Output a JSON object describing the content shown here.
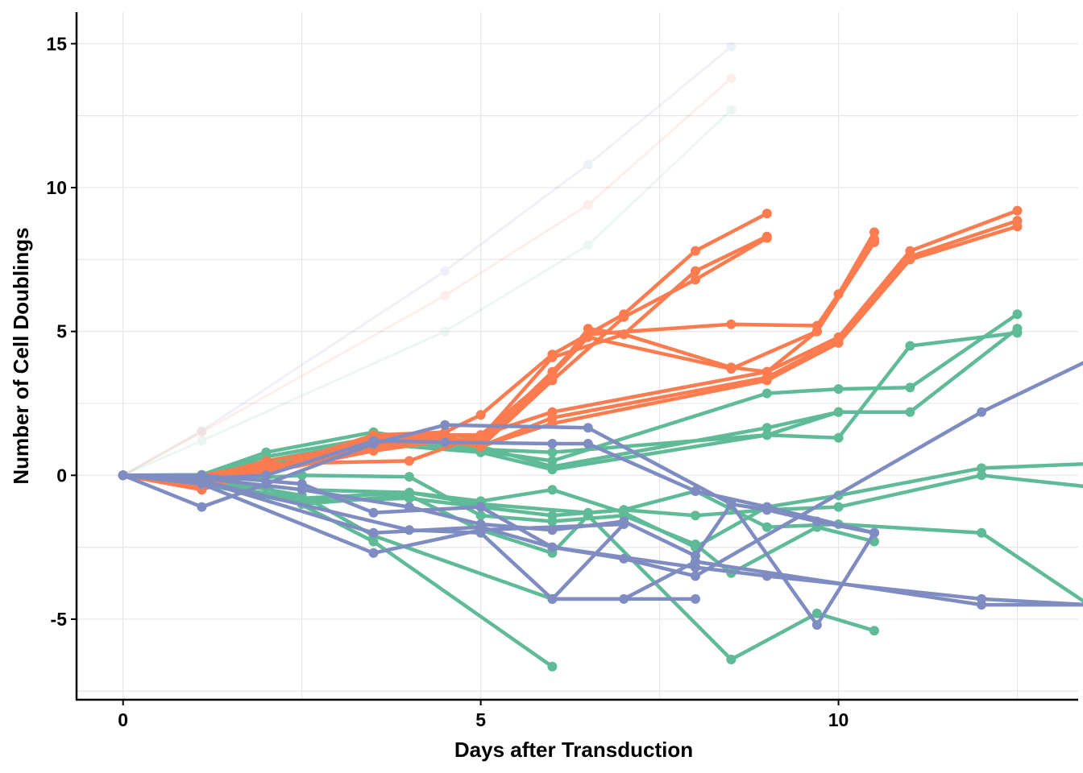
{
  "chart_data": {
    "type": "line",
    "title": "",
    "xlabel": "Days after Transduction",
    "ylabel": "Number of Cell Doublings",
    "xlim": [
      -0.65,
      13.35
    ],
    "ylim": [
      -7.8,
      16.1
    ],
    "x_ticks": [
      0,
      5,
      10
    ],
    "y_ticks": [
      -5,
      0,
      5,
      10,
      15
    ],
    "x_tick_labels": [
      "0",
      "5",
      "10"
    ],
    "y_tick_labels": [
      "-5",
      "0",
      "5",
      "10",
      "15"
    ],
    "grid": true,
    "legend": "none",
    "colors": {
      "green": "#5fbb97",
      "orange": "#fc7b4f",
      "blue": "#7f8cc2"
    },
    "series": [
      {
        "color": "blue",
        "faded": true,
        "points": [
          [
            0,
            0
          ],
          [
            1.1,
            1.55
          ],
          [
            4.5,
            7.1
          ],
          [
            6.5,
            10.8
          ],
          [
            8.5,
            14.9
          ]
        ]
      },
      {
        "color": "orange",
        "faded": true,
        "points": [
          [
            0,
            0
          ],
          [
            1.1,
            1.5
          ],
          [
            4.5,
            6.25
          ],
          [
            6.5,
            9.4
          ],
          [
            8.5,
            13.8
          ]
        ]
      },
      {
        "color": "green",
        "faded": true,
        "points": [
          [
            0,
            0
          ],
          [
            1.1,
            1.2
          ],
          [
            4.5,
            5.0
          ],
          [
            6.5,
            8.0
          ],
          [
            8.5,
            12.7
          ]
        ]
      },
      {
        "color": "green",
        "points": [
          [
            0,
            0
          ],
          [
            1.1,
            0.02
          ],
          [
            2,
            0.8
          ],
          [
            3.5,
            1.5
          ],
          [
            5,
            0.85
          ],
          [
            6,
            0.5
          ],
          [
            9,
            2.85
          ],
          [
            10,
            3.0
          ],
          [
            11,
            3.05
          ],
          [
            12.5,
            5.6
          ]
        ]
      },
      {
        "color": "green",
        "points": [
          [
            0,
            0
          ],
          [
            1.1,
            0
          ],
          [
            2,
            0.65
          ],
          [
            3.5,
            1.3
          ],
          [
            5,
            1.0
          ],
          [
            6,
            0.3
          ],
          [
            9,
            1.65
          ],
          [
            10,
            2.2
          ],
          [
            11,
            2.2
          ],
          [
            12.5,
            5.1
          ]
        ]
      },
      {
        "color": "green",
        "points": [
          [
            0,
            0
          ],
          [
            1.1,
            0
          ],
          [
            2,
            0.5
          ],
          [
            3.5,
            1.2
          ],
          [
            5,
            0.9
          ],
          [
            6,
            0.8
          ],
          [
            9,
            1.4
          ],
          [
            10,
            1.3
          ],
          [
            11,
            4.5
          ],
          [
            12.5,
            4.95
          ]
        ]
      },
      {
        "color": "green",
        "points": [
          [
            0,
            0
          ],
          [
            1.1,
            -0.2
          ],
          [
            2,
            0.4
          ],
          [
            3.5,
            1.1
          ],
          [
            5,
            0.8
          ],
          [
            6,
            0.2
          ],
          [
            9,
            1.4
          ],
          [
            10,
            2.2
          ]
        ]
      },
      {
        "color": "green",
        "points": [
          [
            0,
            0
          ],
          [
            1.1,
            -0.1
          ],
          [
            2.5,
            -0.5
          ],
          [
            4,
            -0.6
          ],
          [
            5,
            -0.9
          ],
          [
            6,
            -0.5
          ],
          [
            7,
            -1.3
          ],
          [
            8,
            -2.5
          ],
          [
            9,
            -1.1
          ],
          [
            10,
            -0.7
          ],
          [
            12,
            0.25
          ],
          [
            13.5,
            0.4
          ]
        ]
      },
      {
        "color": "green",
        "points": [
          [
            0,
            0
          ],
          [
            1.1,
            -0.3
          ],
          [
            2.5,
            -0.8
          ],
          [
            4,
            -0.6
          ],
          [
            5,
            -1.0
          ],
          [
            6.5,
            -1.3
          ],
          [
            7,
            -1.2
          ],
          [
            8,
            -1.4
          ],
          [
            9,
            -1.2
          ],
          [
            10,
            -1.1
          ],
          [
            12,
            0.0
          ],
          [
            13.5,
            -0.4
          ]
        ]
      },
      {
        "color": "green",
        "points": [
          [
            0,
            0
          ],
          [
            1.1,
            -0.2
          ],
          [
            2.5,
            0.0
          ],
          [
            4,
            -0.05
          ],
          [
            5,
            -1.4
          ],
          [
            6,
            -1.6
          ],
          [
            7,
            -1.4
          ],
          [
            8,
            -2.4
          ],
          [
            8.5,
            -3.4
          ],
          [
            9.7,
            -1.8
          ],
          [
            10.5,
            -2.3
          ]
        ]
      },
      {
        "color": "green",
        "points": [
          [
            0,
            0
          ],
          [
            1.1,
            -0.4
          ],
          [
            2,
            -0.4
          ],
          [
            3.5,
            -2.3
          ],
          [
            6,
            -6.65
          ]
        ]
      },
      {
        "color": "green",
        "points": [
          [
            0,
            0
          ],
          [
            1.1,
            -0.3
          ],
          [
            2.5,
            -1.0
          ],
          [
            4,
            -0.7
          ],
          [
            5,
            -1.9
          ],
          [
            6,
            -2.7
          ],
          [
            6.5,
            -1.4
          ],
          [
            8.5,
            -6.4
          ],
          [
            9.7,
            -4.8
          ],
          [
            10.5,
            -5.4
          ]
        ]
      },
      {
        "color": "green",
        "points": [
          [
            0,
            0
          ],
          [
            1.1,
            -0.2
          ],
          [
            2.5,
            -0.9
          ],
          [
            4,
            -0.8
          ],
          [
            5,
            -1.1
          ],
          [
            6,
            -1.4
          ],
          [
            7,
            -1.2
          ],
          [
            8,
            -0.55
          ],
          [
            9,
            -1.8
          ],
          [
            10,
            -1.7
          ],
          [
            12,
            -2.0
          ],
          [
            13.5,
            -4.5
          ]
        ]
      },
      {
        "color": "green",
        "points": [
          [
            0,
            0
          ],
          [
            1.1,
            -0.1
          ],
          [
            2.5,
            -0.7
          ],
          [
            3.5,
            -2.1
          ],
          [
            6,
            -4.3
          ]
        ]
      },
      {
        "color": "orange",
        "points": [
          [
            0,
            0
          ],
          [
            1.1,
            -0.5
          ],
          [
            3.5,
            1.4
          ],
          [
            4.5,
            1.5
          ],
          [
            5,
            2.1
          ],
          [
            6,
            4.2
          ],
          [
            7,
            5.6
          ],
          [
            8,
            7.8
          ],
          [
            9,
            9.1
          ]
        ]
      },
      {
        "color": "orange",
        "points": [
          [
            0,
            0
          ],
          [
            1.1,
            -0.45
          ],
          [
            3.5,
            1.3
          ],
          [
            4.5,
            1.4
          ],
          [
            5,
            1.3
          ],
          [
            6,
            4.1
          ],
          [
            7,
            4.9
          ],
          [
            8,
            7.1
          ],
          [
            9,
            8.3
          ]
        ]
      },
      {
        "color": "orange",
        "points": [
          [
            0,
            0
          ],
          [
            1.1,
            -0.4
          ],
          [
            3.5,
            1.2
          ],
          [
            4.5,
            1.35
          ],
          [
            5,
            1.0
          ],
          [
            6,
            3.3
          ],
          [
            7,
            5.5
          ],
          [
            8,
            6.8
          ],
          [
            9,
            8.25
          ]
        ]
      },
      {
        "color": "orange",
        "points": [
          [
            0,
            0
          ],
          [
            1.1,
            -0.2
          ],
          [
            3.5,
            1.0
          ],
          [
            4.5,
            1.3
          ],
          [
            5,
            1.1
          ],
          [
            6,
            3.45
          ],
          [
            6.5,
            5.1
          ],
          [
            7,
            4.9
          ],
          [
            8.5,
            3.75
          ],
          [
            9,
            3.6
          ],
          [
            9.7,
            5.0
          ],
          [
            10.5,
            8.45
          ]
        ]
      },
      {
        "color": "orange",
        "points": [
          [
            0,
            0
          ],
          [
            1.1,
            -0.1
          ],
          [
            2,
            0.5
          ],
          [
            3.5,
            1.1
          ],
          [
            4.5,
            1.25
          ],
          [
            5,
            1.2
          ],
          [
            6,
            3.6
          ],
          [
            6.5,
            4.9
          ],
          [
            8.5,
            5.25
          ],
          [
            9.7,
            5.2
          ],
          [
            10,
            6.3
          ],
          [
            10.5,
            8.2
          ]
        ]
      },
      {
        "color": "orange",
        "points": [
          [
            0,
            0
          ],
          [
            1.1,
            0
          ],
          [
            2,
            0.4
          ],
          [
            4,
            0.5
          ],
          [
            5,
            1.4
          ],
          [
            6,
            3.5
          ],
          [
            6.5,
            4.8
          ],
          [
            8.5,
            3.7
          ],
          [
            9.7,
            5.0
          ],
          [
            10.5,
            8.1
          ]
        ]
      },
      {
        "color": "orange",
        "points": [
          [
            0,
            0
          ],
          [
            1.1,
            -0.05
          ],
          [
            2,
            0.3
          ],
          [
            3.5,
            1.0
          ],
          [
            4.5,
            1.4
          ],
          [
            5,
            1.4
          ],
          [
            6,
            2.2
          ],
          [
            9,
            3.6
          ],
          [
            10,
            4.8
          ],
          [
            11,
            7.8
          ],
          [
            12.5,
            9.2
          ]
        ]
      },
      {
        "color": "orange",
        "points": [
          [
            0,
            0
          ],
          [
            1.1,
            -0.1
          ],
          [
            2,
            0.2
          ],
          [
            3.5,
            0.9
          ],
          [
            4.5,
            1.3
          ],
          [
            5,
            1.0
          ],
          [
            6,
            2.0
          ],
          [
            9,
            3.4
          ],
          [
            10,
            4.7
          ],
          [
            11,
            7.6
          ],
          [
            12.5,
            8.85
          ]
        ]
      },
      {
        "color": "orange",
        "points": [
          [
            0,
            0
          ],
          [
            1.1,
            -0.2
          ],
          [
            2,
            0.1
          ],
          [
            3.5,
            0.85
          ],
          [
            4.5,
            1.2
          ],
          [
            5,
            1.0
          ],
          [
            6,
            1.8
          ],
          [
            9,
            3.3
          ],
          [
            10,
            4.6
          ],
          [
            11,
            7.5
          ],
          [
            12.5,
            8.65
          ]
        ]
      },
      {
        "color": "blue",
        "points": [
          [
            0,
            0
          ],
          [
            1.1,
            -1.1
          ],
          [
            2,
            -0.3
          ],
          [
            3.5,
            1.1
          ],
          [
            4.5,
            1.75
          ],
          [
            6.5,
            1.65
          ],
          [
            8.5,
            -1.0
          ],
          [
            9.7,
            -5.2
          ],
          [
            10.5,
            -2.0
          ]
        ]
      },
      {
        "color": "blue",
        "points": [
          [
            0,
            0
          ],
          [
            1.1,
            -0.1
          ],
          [
            2,
            0.0
          ],
          [
            3.5,
            1.2
          ],
          [
            4.5,
            1.15
          ],
          [
            6,
            1.1
          ],
          [
            6.5,
            1.1
          ],
          [
            8,
            -0.55
          ],
          [
            9,
            -1.1
          ],
          [
            10.5,
            -2.0
          ]
        ]
      },
      {
        "color": "blue",
        "points": [
          [
            0,
            0
          ],
          [
            1.1,
            0.0
          ],
          [
            2.5,
            -0.3
          ],
          [
            3.5,
            -1.3
          ],
          [
            5,
            -1.1
          ],
          [
            6,
            -2.5
          ],
          [
            7,
            -2.9
          ],
          [
            8,
            -3.5
          ],
          [
            12,
            2.2
          ],
          [
            13.5,
            4.0
          ]
        ]
      },
      {
        "color": "blue",
        "points": [
          [
            0,
            0
          ],
          [
            1.1,
            -0.1
          ],
          [
            2.5,
            -0.5
          ],
          [
            4,
            -1.1
          ],
          [
            5,
            -1.7
          ],
          [
            6,
            -1.9
          ],
          [
            7,
            -1.6
          ],
          [
            8,
            -2.8
          ],
          [
            8.5,
            -1.0
          ],
          [
            9,
            -1.2
          ],
          [
            9.7,
            -1.6
          ],
          [
            10.5,
            -2.0
          ]
        ]
      },
      {
        "color": "blue",
        "points": [
          [
            0,
            0
          ],
          [
            1.1,
            -0.2
          ],
          [
            3.5,
            -2.0
          ],
          [
            5,
            -1.8
          ],
          [
            6,
            -2.5
          ],
          [
            8,
            -3.2
          ],
          [
            9,
            -3.5
          ],
          [
            12,
            -4.3
          ],
          [
            13.5,
            -4.5
          ]
        ]
      },
      {
        "color": "blue",
        "points": [
          [
            0,
            0
          ],
          [
            1.1,
            -0.3
          ],
          [
            3.5,
            -2.7
          ],
          [
            5,
            -1.9
          ],
          [
            7,
            -1.7
          ],
          [
            6,
            -4.3
          ],
          [
            7,
            -4.3
          ],
          [
            8,
            -3.0
          ],
          [
            12,
            -4.5
          ],
          [
            13.5,
            -4.5
          ]
        ]
      },
      {
        "color": "blue",
        "points": [
          [
            0,
            0
          ],
          [
            1.1,
            -0.2
          ],
          [
            4,
            -1.9
          ],
          [
            5,
            -2.0
          ],
          [
            6,
            -4.3
          ],
          [
            8,
            -4.3
          ]
        ]
      }
    ]
  }
}
